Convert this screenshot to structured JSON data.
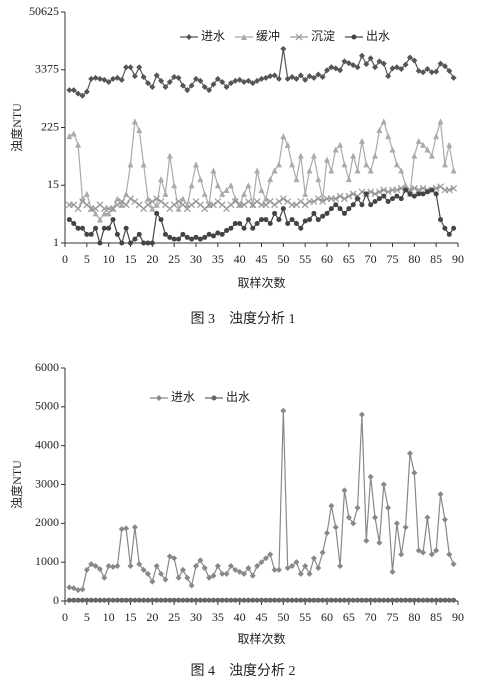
{
  "chart_data": [
    {
      "type": "line",
      "log_scale": true,
      "ylabel": "浊度NTU",
      "xlabel": "取样次数",
      "caption": "图 3　浊度分析 1",
      "xlim": [
        0,
        90
      ],
      "xticks": [
        0,
        5,
        10,
        15,
        20,
        25,
        30,
        35,
        40,
        45,
        50,
        55,
        60,
        65,
        70,
        75,
        80,
        85,
        90
      ],
      "ylim": [
        1,
        50625
      ],
      "yticks": [
        1,
        15,
        225,
        3375,
        50625
      ],
      "x": [
        1,
        2,
        3,
        4,
        5,
        6,
        7,
        8,
        9,
        10,
        11,
        12,
        13,
        14,
        15,
        16,
        17,
        18,
        19,
        20,
        21,
        22,
        23,
        24,
        25,
        26,
        27,
        28,
        29,
        30,
        31,
        32,
        33,
        34,
        35,
        36,
        37,
        38,
        39,
        40,
        41,
        42,
        43,
        44,
        45,
        46,
        47,
        48,
        49,
        50,
        51,
        52,
        53,
        54,
        55,
        56,
        57,
        58,
        59,
        60,
        61,
        62,
        63,
        64,
        65,
        66,
        67,
        68,
        69,
        70,
        71,
        72,
        73,
        74,
        75,
        76,
        77,
        78,
        79,
        80,
        81,
        82,
        83,
        84,
        85,
        86,
        87,
        88,
        89
      ],
      "series": [
        {
          "name": "进水",
          "color": "#555555",
          "marker": "diamond",
          "values": [
            1300,
            1300,
            1100,
            1000,
            1200,
            2200,
            2300,
            2200,
            2100,
            1900,
            2200,
            2300,
            2100,
            3800,
            3800,
            2500,
            3800,
            2400,
            1800,
            1500,
            2600,
            2000,
            1500,
            1900,
            2400,
            2300,
            1600,
            1300,
            1600,
            2200,
            2000,
            1500,
            1300,
            1700,
            2200,
            1900,
            1500,
            1800,
            2000,
            2100,
            1900,
            2000,
            1800,
            2000,
            2200,
            2300,
            2500,
            2600,
            2200,
            9000,
            2200,
            2400,
            2200,
            2600,
            2100,
            2500,
            2300,
            2700,
            2400,
            3300,
            3800,
            3600,
            3300,
            5000,
            4600,
            4200,
            3800,
            6500,
            4400,
            5800,
            3800,
            5000,
            4500,
            2500,
            3600,
            3800,
            3500,
            4300,
            6000,
            5200,
            3200,
            3000,
            3500,
            3000,
            3100,
            4500,
            4000,
            3200,
            2300
          ]
        },
        {
          "name": "缓冲",
          "color": "#aaaaaa",
          "marker": "triangle",
          "values": [
            150,
            170,
            100,
            8,
            10,
            5,
            4,
            3,
            4,
            4,
            5,
            8,
            6,
            10,
            40,
            300,
            200,
            40,
            8,
            5,
            6,
            20,
            10,
            60,
            15,
            5,
            8,
            6,
            15,
            40,
            20,
            10,
            6,
            30,
            15,
            10,
            12,
            15,
            8,
            6,
            10,
            15,
            6,
            30,
            12,
            8,
            20,
            30,
            40,
            150,
            100,
            40,
            20,
            60,
            10,
            30,
            60,
            20,
            8,
            50,
            30,
            80,
            100,
            40,
            20,
            60,
            30,
            120,
            40,
            30,
            60,
            200,
            300,
            150,
            80,
            40,
            30,
            15,
            10,
            60,
            120,
            100,
            80,
            60,
            150,
            300,
            40,
            100,
            30
          ]
        },
        {
          "name": "沉淀",
          "color": "#999999",
          "marker": "cross",
          "values": [
            6,
            6,
            5,
            7,
            6,
            5,
            5,
            6,
            5,
            5,
            5,
            6,
            7,
            6,
            8,
            7,
            6,
            5,
            6,
            7,
            8,
            7,
            6,
            5,
            6,
            7,
            6,
            5,
            6,
            7,
            6,
            5,
            6,
            6,
            7,
            6,
            5,
            6,
            7,
            6,
            6,
            7,
            6,
            7,
            6,
            6,
            7,
            6,
            7,
            8,
            7,
            6,
            6,
            7,
            6,
            7,
            7,
            8,
            7,
            8,
            8,
            8,
            9,
            8,
            9,
            10,
            9,
            11,
            10,
            11,
            10,
            11,
            12,
            11,
            12,
            12,
            13,
            12,
            12,
            13,
            12,
            13,
            12,
            12,
            13,
            14,
            12,
            12,
            13
          ]
        },
        {
          "name": "出水",
          "color": "#444444",
          "marker": "circle",
          "values": [
            3,
            2.5,
            2,
            2,
            1.5,
            1.5,
            2,
            1,
            2,
            2,
            3,
            1.5,
            1,
            2,
            1,
            1.2,
            1.5,
            1,
            1,
            1,
            4,
            3,
            1.5,
            1.3,
            1.2,
            1.2,
            1.5,
            1.3,
            1.2,
            1.3,
            1.2,
            1.3,
            1.5,
            1.4,
            1.6,
            1.5,
            1.8,
            2,
            2.5,
            2.5,
            2,
            3,
            2,
            2.5,
            3,
            3,
            2.5,
            4,
            3,
            5,
            2.5,
            3,
            2.5,
            2,
            2.8,
            3,
            4,
            3,
            3.5,
            4,
            5,
            6,
            5,
            4,
            5,
            6,
            8,
            6,
            10,
            6,
            7,
            8,
            9,
            7,
            8,
            9,
            8,
            12,
            10,
            9,
            10,
            10,
            11,
            12,
            10,
            3,
            2,
            1.5,
            2
          ]
        }
      ]
    },
    {
      "type": "line",
      "log_scale": false,
      "ylabel": "浊度NTU",
      "xlabel": "取样次数",
      "caption": "图 4　浊度分析 2",
      "xlim": [
        0,
        90
      ],
      "xticks": [
        0,
        5,
        10,
        15,
        20,
        25,
        30,
        35,
        40,
        45,
        50,
        55,
        60,
        65,
        70,
        75,
        80,
        85,
        90
      ],
      "ylim": [
        0,
        6000
      ],
      "yticks": [
        0,
        1000,
        2000,
        3000,
        4000,
        5000,
        6000
      ],
      "x": [
        1,
        2,
        3,
        4,
        5,
        6,
        7,
        8,
        9,
        10,
        11,
        12,
        13,
        14,
        15,
        16,
        17,
        18,
        19,
        20,
        21,
        22,
        23,
        24,
        25,
        26,
        27,
        28,
        29,
        30,
        31,
        32,
        33,
        34,
        35,
        36,
        37,
        38,
        39,
        40,
        41,
        42,
        43,
        44,
        45,
        46,
        47,
        48,
        49,
        50,
        51,
        52,
        53,
        54,
        55,
        56,
        57,
        58,
        59,
        60,
        61,
        62,
        63,
        64,
        65,
        66,
        67,
        68,
        69,
        70,
        71,
        72,
        73,
        74,
        75,
        76,
        77,
        78,
        79,
        80,
        81,
        82,
        83,
        84,
        85,
        86,
        87,
        88,
        89
      ],
      "series": [
        {
          "name": "进水",
          "color": "#888888",
          "marker": "diamond",
          "values": [
            350,
            330,
            280,
            300,
            800,
            950,
            900,
            820,
            600,
            900,
            880,
            900,
            1850,
            1870,
            900,
            1900,
            950,
            800,
            700,
            500,
            900,
            700,
            550,
            1150,
            1100,
            600,
            800,
            600,
            400,
            900,
            1050,
            850,
            600,
            650,
            900,
            700,
            700,
            900,
            800,
            750,
            700,
            850,
            650,
            900,
            1000,
            1100,
            1200,
            800,
            800,
            4900,
            850,
            900,
            1000,
            700,
            900,
            700,
            1100,
            850,
            1250,
            1750,
            2450,
            1900,
            900,
            2850,
            2150,
            2000,
            2400,
            4800,
            1550,
            3200,
            2150,
            1500,
            3000,
            2400,
            750,
            2000,
            1200,
            1900,
            3800,
            3300,
            1300,
            1250,
            2150,
            1200,
            1300,
            2750,
            2100,
            1200,
            950
          ]
        },
        {
          "name": "出水",
          "color": "#666666",
          "marker": "circle",
          "values": [
            20,
            20,
            20,
            20,
            20,
            20,
            20,
            20,
            20,
            20,
            20,
            20,
            20,
            20,
            20,
            20,
            20,
            20,
            20,
            20,
            20,
            20,
            20,
            20,
            20,
            20,
            20,
            20,
            20,
            20,
            20,
            20,
            20,
            20,
            20,
            20,
            20,
            20,
            20,
            20,
            20,
            20,
            20,
            20,
            20,
            20,
            20,
            20,
            20,
            20,
            20,
            20,
            20,
            20,
            20,
            20,
            20,
            20,
            20,
            20,
            20,
            20,
            20,
            20,
            20,
            20,
            20,
            20,
            20,
            20,
            20,
            20,
            20,
            20,
            20,
            20,
            20,
            20,
            20,
            20,
            20,
            20,
            20,
            20,
            20,
            20,
            20,
            20,
            20
          ]
        }
      ]
    }
  ]
}
